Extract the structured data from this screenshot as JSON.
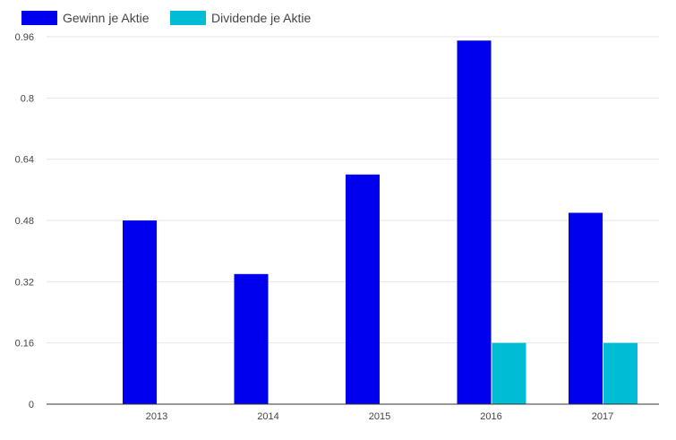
{
  "chart_data": {
    "type": "bar",
    "categories": [
      "2013",
      "2014",
      "2015",
      "2016",
      "2017"
    ],
    "series": [
      {
        "name": "Gewinn je Aktie",
        "color": "#0000ee",
        "values": [
          0.48,
          0.34,
          0.6,
          0.95,
          0.5
        ]
      },
      {
        "name": "Dividende je Aktie",
        "color": "#00bcd4",
        "values": [
          0,
          0,
          0,
          0.16,
          0.16
        ]
      }
    ],
    "y_ticks": [
      "0",
      "0.16",
      "0.32",
      "0.48",
      "0.64",
      "0.8",
      "0.96"
    ],
    "ylim": [
      0,
      0.96
    ],
    "grid": true,
    "legend_position": "top-left"
  }
}
